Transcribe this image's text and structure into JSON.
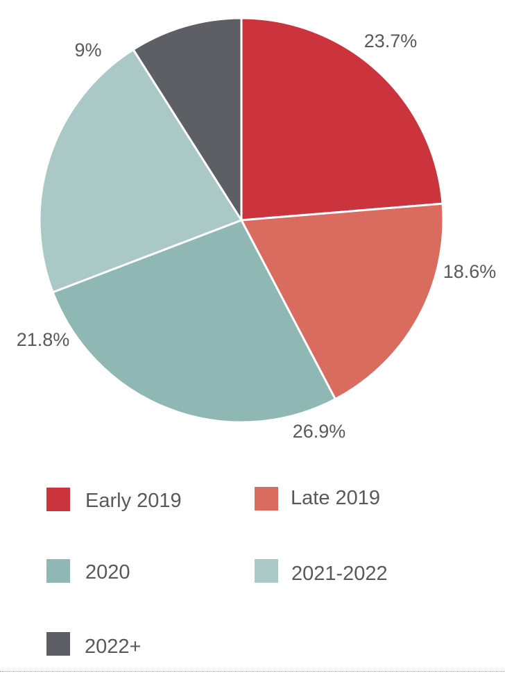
{
  "chart_data": {
    "type": "pie",
    "title": "",
    "series": [
      {
        "name": "Early 2019",
        "value": 23.7,
        "label": "23.7%",
        "color": "#cc343d"
      },
      {
        "name": "Late 2019",
        "value": 18.6,
        "label": "18.6%",
        "color": "#d96c5f"
      },
      {
        "name": "2020",
        "value": 26.9,
        "label": "26.9%",
        "color": "#8fb7b4"
      },
      {
        "name": "2021-2022",
        "value": 21.8,
        "label": "21.8%",
        "color": "#aac8c5"
      },
      {
        "name": "2022+",
        "value": 9,
        "label": "9%",
        "color": "#5e5f64"
      }
    ],
    "legend_position": "bottom",
    "slice_border_color": "#ffffff",
    "label_color": "#58595b"
  }
}
